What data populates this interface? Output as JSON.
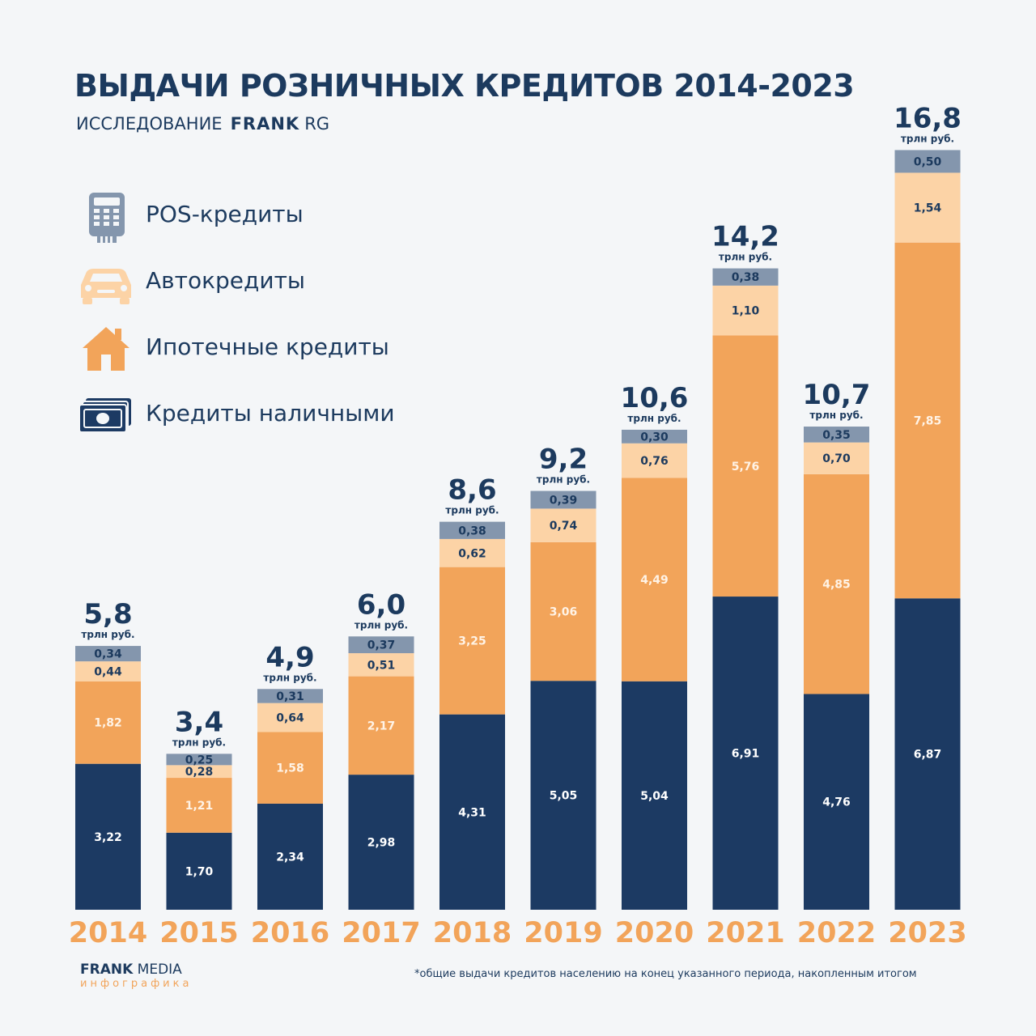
{
  "header": {
    "title": "ВЫДАЧИ РОЗНИЧНЫХ КРЕДИТОВ 2014-2023",
    "subtitle_prefix": "ИССЛЕДОВАНИЕ",
    "subtitle_brand": "FRANK",
    "subtitle_brand2": "RG"
  },
  "legend": [
    {
      "label": "POS-кредиты",
      "icon": "pos-terminal-icon"
    },
    {
      "label": "Автокредиты",
      "icon": "car-icon"
    },
    {
      "label": "Ипотечные кредиты",
      "icon": "house-icon"
    },
    {
      "label": "Кредиты наличными",
      "icon": "cash-icon"
    }
  ],
  "colors": {
    "cash": "#1c3a63",
    "mortgage": "#f2a45a",
    "auto": "#fcd3a6",
    "pos": "#8496ad",
    "year": "#f2a45a",
    "text": "#1c3a5e"
  },
  "chart_data": {
    "type": "bar",
    "stacked": true,
    "title": "ВЫДАЧИ РОЗНИЧНЫХ КРЕДИТОВ 2014-2023",
    "unit": "трлн руб.",
    "categories": [
      "2014",
      "2015",
      "2016",
      "2017",
      "2018",
      "2019",
      "2020",
      "2021",
      "2022",
      "2023"
    ],
    "totals": [
      "5,8",
      "3,4",
      "4,9",
      "6,0",
      "8,6",
      "9,2",
      "10,6",
      "14,2",
      "10,7",
      "16,8"
    ],
    "series": [
      {
        "name": "Кредиты наличными",
        "key": "cash",
        "values": [
          3.22,
          1.7,
          2.34,
          2.98,
          4.31,
          5.05,
          5.04,
          6.91,
          4.76,
          6.87
        ],
        "labels": [
          "3,22",
          "1,70",
          "2,34",
          "2,98",
          "4,31",
          "5,05",
          "5,04",
          "6,91",
          "4,76",
          "6,87"
        ]
      },
      {
        "name": "Ипотечные кредиты",
        "key": "mortgage",
        "values": [
          1.82,
          1.21,
          1.58,
          2.17,
          3.25,
          3.06,
          4.49,
          5.76,
          4.85,
          7.85
        ],
        "labels": [
          "1,82",
          "1,21",
          "1,58",
          "2,17",
          "3,25",
          "3,06",
          "4,49",
          "5,76",
          "4,85",
          "7,85"
        ]
      },
      {
        "name": "Автокредиты",
        "key": "auto",
        "values": [
          0.44,
          0.28,
          0.64,
          0.51,
          0.62,
          0.74,
          0.76,
          1.1,
          0.7,
          1.54
        ],
        "labels": [
          "0,44",
          "0,28",
          "0,64",
          "0,51",
          "0,62",
          "0,74",
          "0,76",
          "1,10",
          "0,70",
          "1,54"
        ]
      },
      {
        "name": "POS-кредиты",
        "key": "pos",
        "values": [
          0.34,
          0.25,
          0.31,
          0.37,
          0.38,
          0.39,
          0.3,
          0.38,
          0.35,
          0.5
        ],
        "labels": [
          "0,34",
          "0,25",
          "0,31",
          "0,37",
          "0,38",
          "0,39",
          "0,30",
          "0,38",
          "0,35",
          "0,50"
        ]
      }
    ]
  },
  "footer": {
    "brand_bold": "FRANK",
    "brand_rest": "MEDIA",
    "brand_sub": "инфографика",
    "footnote": "*общие выдачи кредитов населению на конец указанного периода, накопленным итогом"
  }
}
